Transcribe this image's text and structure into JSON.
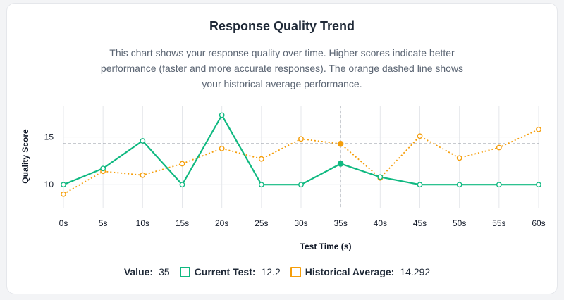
{
  "header": {
    "title": "Response Quality Trend",
    "description": "This chart shows your response quality over time. Higher scores indicate better performance (faster and more accurate responses). The orange dashed line shows your historical average performance."
  },
  "chart_data": {
    "type": "line",
    "xlabel": "Test Time (s)",
    "ylabel": "Quality Score",
    "x": [
      0,
      5,
      10,
      15,
      20,
      25,
      30,
      35,
      40,
      45,
      50,
      55,
      60
    ],
    "x_tick_labels": [
      "0s",
      "5s",
      "10s",
      "15s",
      "20s",
      "25s",
      "30s",
      "35s",
      "40s",
      "45s",
      "50s",
      "55s",
      "60s"
    ],
    "y_ticks": [
      10,
      15
    ],
    "ylim": [
      7.5,
      18.3
    ],
    "series": [
      {
        "name": "Current Test",
        "color": "#10b981",
        "style": "solid",
        "values": [
          10.0,
          11.7,
          14.6,
          10.0,
          17.3,
          10.0,
          10.0,
          12.2,
          10.8,
          10.0,
          10.0,
          10.0,
          10.0
        ]
      },
      {
        "name": "Historical Average",
        "color": "#f59e0b",
        "style": "dotted",
        "values": [
          9.0,
          11.4,
          11.0,
          12.2,
          13.8,
          12.7,
          14.8,
          14.292,
          10.7,
          15.1,
          12.8,
          13.9,
          15.8
        ]
      }
    ],
    "reference_line": {
      "y": 14.292
    },
    "hover": {
      "x": 35
    }
  },
  "legend": {
    "value_label": "Value:",
    "value": "35",
    "current_label": "Current Test:",
    "current_value": "12.2",
    "historical_label": "Historical Average:",
    "historical_value": "14.292"
  }
}
